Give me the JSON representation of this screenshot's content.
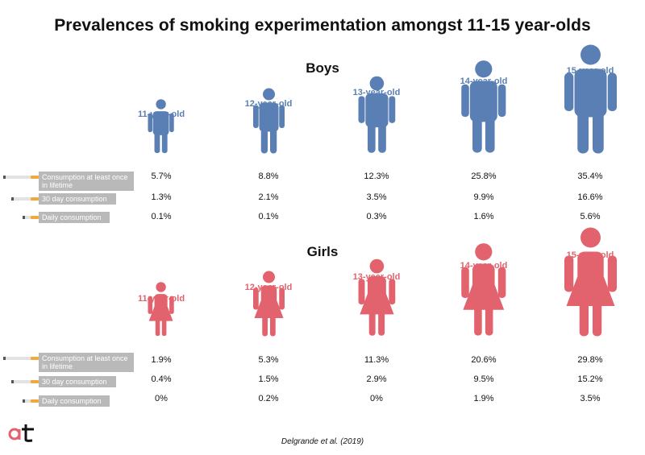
{
  "title": "Prevalences of smoking experimentation amongst 11-15 year-olds",
  "source": "Delgrande et al. (2019)",
  "legend": [
    "Consumption at least once in lifetime",
    "30 day consumption",
    "Daily consumption"
  ],
  "colors": {
    "boys": "#5a7fb5",
    "girls": "#e2636d",
    "legend_bg": "#b9b9b9",
    "filter": "#f0a93a"
  },
  "logo_text": "at",
  "chart_data": {
    "type": "table",
    "ages": [
      "11-year-old",
      "12-year-old",
      "13-year-old",
      "14-year-old",
      "15-year-old"
    ],
    "groups": [
      {
        "name": "Boys",
        "series": [
          {
            "name": "Consumption at least once in lifetime",
            "values": [
              "5.7%",
              "8.8%",
              "12.3%",
              "25.8%",
              "35.4%"
            ]
          },
          {
            "name": "30 day consumption",
            "values": [
              "1.3%",
              "2.1%",
              "3.5%",
              "9.9%",
              "16.6%"
            ]
          },
          {
            "name": "Daily consumption",
            "values": [
              "0.1%",
              "0.1%",
              "0.3%",
              "1.6%",
              "5.6%"
            ]
          }
        ]
      },
      {
        "name": "Girls",
        "series": [
          {
            "name": "Consumption at least once in lifetime",
            "values": [
              "1.9%",
              "5.3%",
              "11.3%",
              "20.6%",
              "29.8%"
            ]
          },
          {
            "name": "30 day consumption",
            "values": [
              "0.4%",
              "1.5%",
              "2.9%",
              "9.5%",
              "15.2%"
            ]
          },
          {
            "name": "Daily consumption",
            "values": [
              "0%",
              "0.2%",
              "0%",
              "1.9%",
              "3.5%"
            ]
          }
        ]
      }
    ]
  }
}
